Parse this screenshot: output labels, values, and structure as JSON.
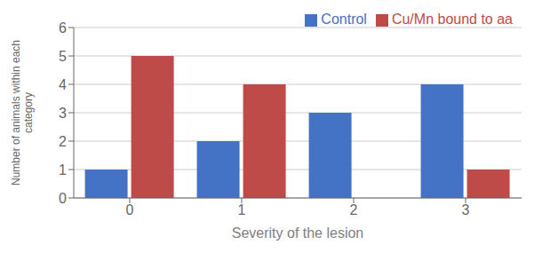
{
  "chart_data": {
    "type": "bar",
    "categories": [
      "0",
      "1",
      "2",
      "3"
    ],
    "series": [
      {
        "name": "Control",
        "color": "#4472C4",
        "values": [
          1,
          2,
          3,
          4
        ]
      },
      {
        "name": "Cu/Mn bound to aa",
        "color": "#BE4B48",
        "values": [
          5,
          4,
          0,
          1
        ]
      }
    ],
    "xlabel": "Severity of the lesion",
    "ylabel": "Number of animals within each\ncategory",
    "ylim": [
      0,
      6
    ],
    "yticks": [
      0,
      1,
      2,
      3,
      4,
      5,
      6
    ],
    "grid": true,
    "legend": "upper right"
  }
}
